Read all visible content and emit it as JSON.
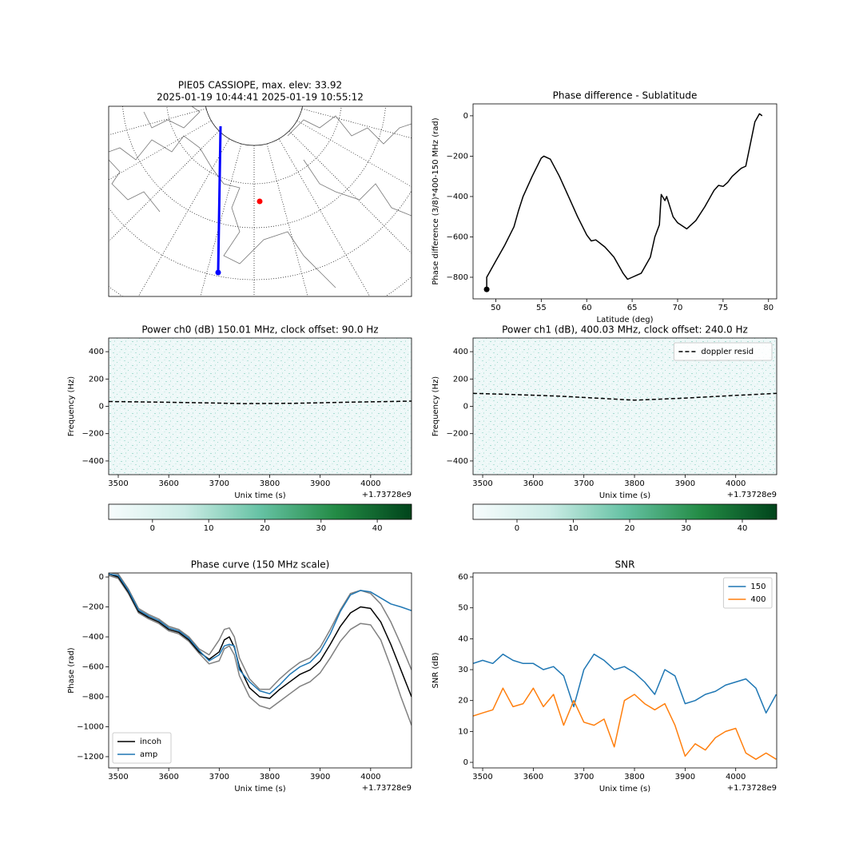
{
  "chart_data": [
    {
      "type": "map",
      "title": "PIE05 CASSIOPE, max. elev: 33.92",
      "subtitle": "2025-01-19 10:44:41 2025-01-19 10:55:12"
    },
    {
      "type": "line",
      "title": "Phase difference - Sublatitude",
      "xlabel": "Latitude (deg)",
      "ylabel": "Phase difference (3/8)*400-150 MHz (rad)",
      "xlim": [
        47.5,
        80.9
      ],
      "ylim": [
        -907,
        59
      ],
      "xticks": [
        50,
        55,
        60,
        65,
        70,
        75,
        80
      ],
      "yticks": [
        {
          "value": -800,
          "label": "−800"
        },
        {
          "value": -600,
          "label": "−600"
        },
        {
          "value": -400,
          "label": "−400"
        },
        {
          "value": -200,
          "label": "−200"
        },
        0
      ],
      "x": [
        49,
        49,
        50,
        51,
        52,
        52.5,
        53,
        54,
        55,
        55.3,
        56,
        57,
        58,
        59,
        60,
        60.5,
        61,
        62,
        63,
        64,
        64.5,
        65,
        65.5,
        66,
        67,
        67.5,
        68,
        68.2,
        68.6,
        68.8,
        69.5,
        70,
        71,
        72,
        73,
        74,
        74.5,
        75,
        75.5,
        76,
        77,
        77.5,
        78,
        78.5,
        79,
        79.3
      ],
      "series": [
        {
          "color": "#000000",
          "start_marker": true,
          "values": [
            -860,
            -800,
            -720,
            -640,
            -550,
            -470,
            -400,
            -300,
            -210,
            -200,
            -215,
            -300,
            -400,
            -500,
            -590,
            -620,
            -615,
            -650,
            -700,
            -780,
            -810,
            -800,
            -790,
            -780,
            -700,
            -600,
            -540,
            -390,
            -420,
            -400,
            -500,
            -530,
            -560,
            -520,
            -450,
            -370,
            -345,
            -350,
            -330,
            -300,
            -260,
            -250,
            -140,
            -30,
            10,
            0
          ]
        }
      ]
    },
    {
      "type": "heatmap",
      "title": "Power ch0 (dB) 150.01 MHz, clock offset: 90.0 Hz",
      "xlabel": "Unix time (s)",
      "x_offset_label": "+1.73728e9",
      "ylabel": "Frequency (Hz)",
      "xlim": [
        3481,
        4081
      ],
      "ylim": [
        -500,
        500
      ],
      "xticks": [
        3500,
        3600,
        3700,
        3800,
        3900,
        4000
      ],
      "yticks": [
        {
          "value": -400,
          "label": "−400"
        },
        {
          "value": -200,
          "label": "−200"
        },
        0,
        200,
        400
      ],
      "x": [
        3481,
        3550,
        3650,
        3750,
        3850,
        3950,
        4081
      ],
      "series": [
        {
          "color": "#000000",
          "dash": true,
          "values": [
            35,
            32,
            27,
            20,
            22,
            30,
            38
          ]
        }
      ],
      "colorbar": {
        "lim": [
          -7.8,
          46.1
        ],
        "ticks": [
          0,
          10,
          20,
          30,
          40
        ],
        "colors": [
          "#f7fcfd",
          "#ccece6",
          "#66c2a4",
          "#238b45",
          "#00441b"
        ]
      }
    },
    {
      "type": "heatmap",
      "title": "Power ch1 (dB), 400.03 MHz, clock offset: 240.0 Hz",
      "xlabel": "Unix time (s)",
      "x_offset_label": "+1.73728e9",
      "ylabel": "Frequency (Hz)",
      "xlim": [
        3481,
        4081
      ],
      "ylim": [
        -500,
        500
      ],
      "xticks": [
        3500,
        3600,
        3700,
        3800,
        3900,
        4000
      ],
      "yticks": [
        {
          "value": -400,
          "label": "−400"
        },
        {
          "value": -200,
          "label": "−200"
        },
        0,
        200,
        400
      ],
      "x": [
        3481,
        3550,
        3650,
        3750,
        3800,
        3900,
        4000,
        4081
      ],
      "legend": "upper right",
      "series": [
        {
          "name": "doppler resid",
          "color": "#000000",
          "dash": true,
          "values": [
            95,
            88,
            75,
            55,
            45,
            60,
            80,
            95
          ]
        }
      ],
      "colorbar": {
        "lim": [
          -7.8,
          46.1
        ],
        "ticks": [
          0,
          10,
          20,
          30,
          40
        ],
        "colors": [
          "#f7fcfd",
          "#ccece6",
          "#66c2a4",
          "#238b45",
          "#00441b"
        ]
      }
    },
    {
      "type": "line",
      "title": "Phase curve (150 MHz scale)",
      "xlabel": "Unix time (s)",
      "x_offset_label": "+1.73728e9",
      "ylabel": "Phase (rad)",
      "xlim": [
        3481,
        4081
      ],
      "ylim": [
        -1275,
        27
      ],
      "xticks": [
        3500,
        3600,
        3700,
        3800,
        3900,
        4000
      ],
      "yticks": [
        {
          "value": -1200,
          "label": "−1200"
        },
        {
          "value": -1000,
          "label": "−1000"
        },
        {
          "value": -800,
          "label": "−800"
        },
        {
          "value": -600,
          "label": "−600"
        },
        {
          "value": -400,
          "label": "−400"
        },
        {
          "value": -200,
          "label": "−200"
        },
        0
      ],
      "legend": "lower left",
      "x": [
        3481,
        3500,
        3520,
        3540,
        3560,
        3580,
        3600,
        3620,
        3640,
        3660,
        3680,
        3700,
        3710,
        3720,
        3730,
        3740,
        3760,
        3780,
        3800,
        3820,
        3840,
        3860,
        3880,
        3900,
        3920,
        3940,
        3960,
        3980,
        4000,
        4020,
        4040,
        4060,
        4081
      ],
      "series": [
        {
          "color": "#808080",
          "values": [
            30,
            20,
            -80,
            -210,
            -250,
            -280,
            -330,
            -350,
            -400,
            -480,
            -520,
            -420,
            -350,
            -340,
            -400,
            -540,
            -680,
            -750,
            -750,
            -680,
            -620,
            -570,
            -540,
            -470,
            -350,
            -220,
            -110,
            -90,
            -110,
            -180,
            -300,
            -450,
            -620
          ]
        },
        {
          "color": "#808080",
          "values": [
            10,
            -10,
            -110,
            -240,
            -280,
            -310,
            -360,
            -380,
            -430,
            -510,
            -580,
            -560,
            -480,
            -460,
            -520,
            -660,
            -800,
            -860,
            -880,
            -830,
            -780,
            -730,
            -700,
            -640,
            -540,
            -430,
            -350,
            -310,
            -320,
            -420,
            -600,
            -800,
            -990
          ]
        },
        {
          "name": "incoh",
          "color": "#000000",
          "values": [
            20,
            0,
            -100,
            -230,
            -270,
            -300,
            -350,
            -370,
            -420,
            -500,
            -550,
            -500,
            -420,
            -400,
            -470,
            -600,
            -740,
            -800,
            -810,
            -750,
            -700,
            -650,
            -620,
            -560,
            -450,
            -330,
            -240,
            -200,
            -210,
            -300,
            -450,
            -620,
            -800
          ]
        },
        {
          "name": "amp",
          "color": "#1f77b4",
          "values": [
            20,
            10,
            -90,
            -220,
            -260,
            -290,
            -340,
            -360,
            -410,
            -490,
            -560,
            -520,
            -460,
            -450,
            -460,
            -620,
            -700,
            -760,
            -780,
            -720,
            -650,
            -600,
            -570,
            -500,
            -380,
            -230,
            -120,
            -90,
            -100,
            -140,
            -180,
            -200,
            -225
          ]
        }
      ]
    },
    {
      "type": "line",
      "title": "SNR",
      "xlabel": "Unix time (s)",
      "x_offset_label": "+1.73728e9",
      "ylabel": "SNR (dB)",
      "xlim": [
        3481,
        4081
      ],
      "ylim": [
        -1.8,
        61.3
      ],
      "xticks": [
        3500,
        3600,
        3700,
        3800,
        3900,
        4000
      ],
      "yticks": [
        0,
        10,
        20,
        30,
        40,
        50,
        60
      ],
      "legend": "upper right",
      "x": [
        3481,
        3500,
        3520,
        3540,
        3560,
        3580,
        3600,
        3620,
        3640,
        3660,
        3680,
        3700,
        3720,
        3740,
        3760,
        3780,
        3800,
        3820,
        3840,
        3860,
        3880,
        3900,
        3920,
        3940,
        3960,
        3980,
        4000,
        4020,
        4040,
        4060,
        4080
      ],
      "series": [
        {
          "name": "150",
          "color": "#1f77b4",
          "values": [
            32,
            33,
            32,
            35,
            33,
            32,
            32,
            30,
            31,
            28,
            18,
            30,
            35,
            33,
            30,
            31,
            29,
            26,
            22,
            30,
            28,
            19,
            20,
            22,
            23,
            25,
            26,
            27,
            24,
            16,
            22
          ]
        },
        {
          "name": "400",
          "color": "#ff7f0e",
          "values": [
            15,
            16,
            17,
            24,
            18,
            19,
            24,
            18,
            22,
            12,
            20,
            13,
            12,
            14,
            5,
            20,
            22,
            19,
            17,
            19,
            12,
            2,
            6,
            4,
            8,
            10,
            11,
            3,
            1,
            3,
            1
          ]
        }
      ]
    }
  ]
}
